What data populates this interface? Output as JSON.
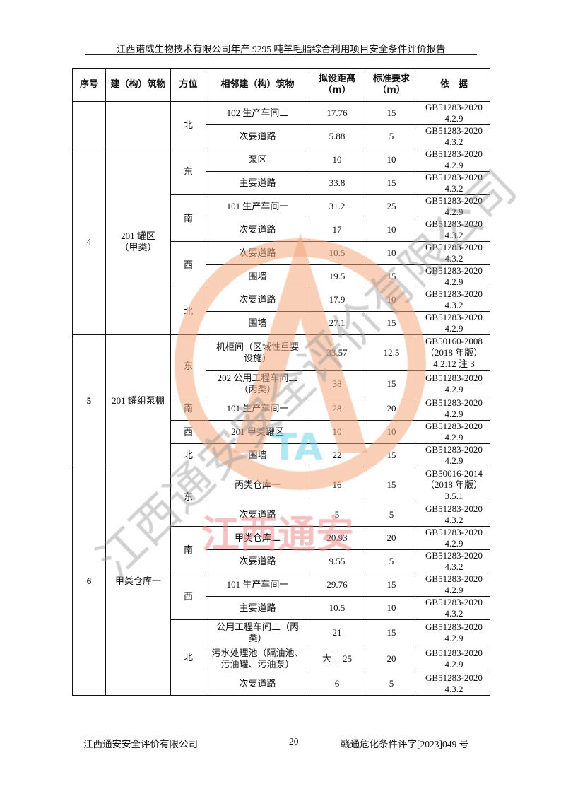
{
  "header": {
    "title": "江西诺威生物技术有限公司年产 9295 吨羊毛脂综合利用项目安全条件评价报告"
  },
  "table": {
    "columns": [
      "序号",
      "建（构）筑物",
      "方位",
      "相邻建（构）筑物",
      "拟设距离\n（m）",
      "标准要求\n（m）",
      "依　据"
    ],
    "groups": [
      {
        "seq": "",
        "building": "",
        "bold": false,
        "directions": [
          {
            "dir": "北",
            "rows": [
              {
                "neighbor": "102 生产车间二",
                "distance": "17.76",
                "required": "15",
                "basis": "GB51283-2020\n4.2.9"
              },
              {
                "neighbor": "次要道路",
                "distance": "5.88",
                "required": "5",
                "basis": "GB51283-2020\n4.3.2"
              }
            ]
          }
        ]
      },
      {
        "seq": "4",
        "building": "201 罐区\n（甲类）",
        "bold": false,
        "directions": [
          {
            "dir": "东",
            "rows": [
              {
                "neighbor": "泵区",
                "distance": "10",
                "required": "10",
                "basis": "GB51283-2020\n4.2.9"
              },
              {
                "neighbor": "主要道路",
                "distance": "33.8",
                "required": "15",
                "basis": "GB51283-2020\n4.3.2"
              }
            ]
          },
          {
            "dir": "南",
            "rows": [
              {
                "neighbor": "101 生产车间一",
                "distance": "31.2",
                "required": "25",
                "basis": "GB51283-2020\n4.2.9"
              },
              {
                "neighbor": "次要道路",
                "distance": "17",
                "required": "10",
                "basis": "GB51283-2020\n4.3.2"
              }
            ]
          },
          {
            "dir": "西",
            "rows": [
              {
                "neighbor": "次要道路",
                "distance": "10.5",
                "required": "10",
                "basis": "GB51283-2020\n4.3.2"
              },
              {
                "neighbor": "围墙",
                "distance": "19.5",
                "required": "15",
                "basis": "GB51283-2020\n4.2.9"
              }
            ]
          },
          {
            "dir": "北",
            "rows": [
              {
                "neighbor": "次要道路",
                "distance": "17.9",
                "required": "10",
                "basis": "GB51283-2020\n4.3.2"
              },
              {
                "neighbor": "围墙",
                "distance": "27.1",
                "required": "15",
                "basis": "GB51283-2020\n4.2.9"
              }
            ]
          }
        ]
      },
      {
        "seq": "5",
        "building": "201 罐组泵棚",
        "bold": true,
        "directions": [
          {
            "dir": "东",
            "rows": [
              {
                "neighbor": "机柜间（区域性重要\n设施）",
                "distance": "33.57",
                "required": "12.5",
                "basis": "GB50160-2008\n（2018 年版）\n4.2.12 注 3"
              },
              {
                "neighbor": "202 公用工程车间二\n（丙类）",
                "distance": "38",
                "required": "15",
                "basis": "GB51283-2020\n4.2.9"
              }
            ]
          },
          {
            "dir": "南",
            "rows": [
              {
                "neighbor": "101 生产车间一",
                "distance": "28",
                "required": "20",
                "basis": "GB51283-2020\n4.2.9"
              }
            ]
          },
          {
            "dir": "西",
            "rows": [
              {
                "neighbor": "201 甲类罐区",
                "distance": "10",
                "required": "10",
                "basis": "GB51283-2020\n4.2.9"
              }
            ]
          },
          {
            "dir": "北",
            "rows": [
              {
                "neighbor": "围墙",
                "distance": "22",
                "required": "15",
                "basis": "GB51283-2020\n4.2.9"
              }
            ]
          }
        ]
      },
      {
        "seq": "6",
        "building": "甲类仓库一",
        "bold": true,
        "directions": [
          {
            "dir": "东",
            "rows": [
              {
                "neighbor": "丙类仓库一",
                "distance": "16",
                "required": "15",
                "basis": "GB50016-2014\n（2018 年版）\n3.5.1"
              },
              {
                "neighbor": "次要道路",
                "distance": "5",
                "required": "5",
                "basis": "GB51283-2020\n4.3.2"
              }
            ]
          },
          {
            "dir": "南",
            "rows": [
              {
                "neighbor": "甲类仓库二",
                "distance": "20.93",
                "required": "20",
                "basis": "GB51283-2020\n4.2.9"
              },
              {
                "neighbor": "次要道路",
                "distance": "9.55",
                "required": "5",
                "basis": "GB51283-2020\n4.3.2"
              }
            ]
          },
          {
            "dir": "西",
            "rows": [
              {
                "neighbor": "101 生产车间一",
                "distance": "29.76",
                "required": "15",
                "basis": "GB51283-2020\n4.2.9"
              },
              {
                "neighbor": "主要道路",
                "distance": "10.5",
                "required": "10",
                "basis": "GB51283-2020\n4.3.2"
              }
            ]
          },
          {
            "dir": "北",
            "rows": [
              {
                "neighbor": "公用工程车间二（丙\n类）",
                "distance": "21",
                "required": "15",
                "basis": "GB51283-2020\n4.2.9"
              },
              {
                "neighbor": "污水处理池（隔油池、\n污油罐、污油泵）",
                "distance": "大于 25",
                "required": "20",
                "basis": "GB51283-2020\n4.2.9"
              },
              {
                "neighbor": "次要道路",
                "distance": "6",
                "required": "5",
                "basis": "GB51283-2020\n4.3.2"
              }
            ]
          }
        ]
      }
    ]
  },
  "footer": {
    "company": "江西通安安全评价有限公司",
    "page": "20",
    "doc_no": "赣通危化条件评字[2023]049 号"
  },
  "watermark": {
    "text": "江西通安安全评价有限公司",
    "brand": "江西通安",
    "logo": "TA",
    "colors": {
      "orange": "#f4a77c",
      "gray": "#9a9a9a",
      "red": "#f08a8a",
      "cyan": "#6fd3ec"
    }
  }
}
